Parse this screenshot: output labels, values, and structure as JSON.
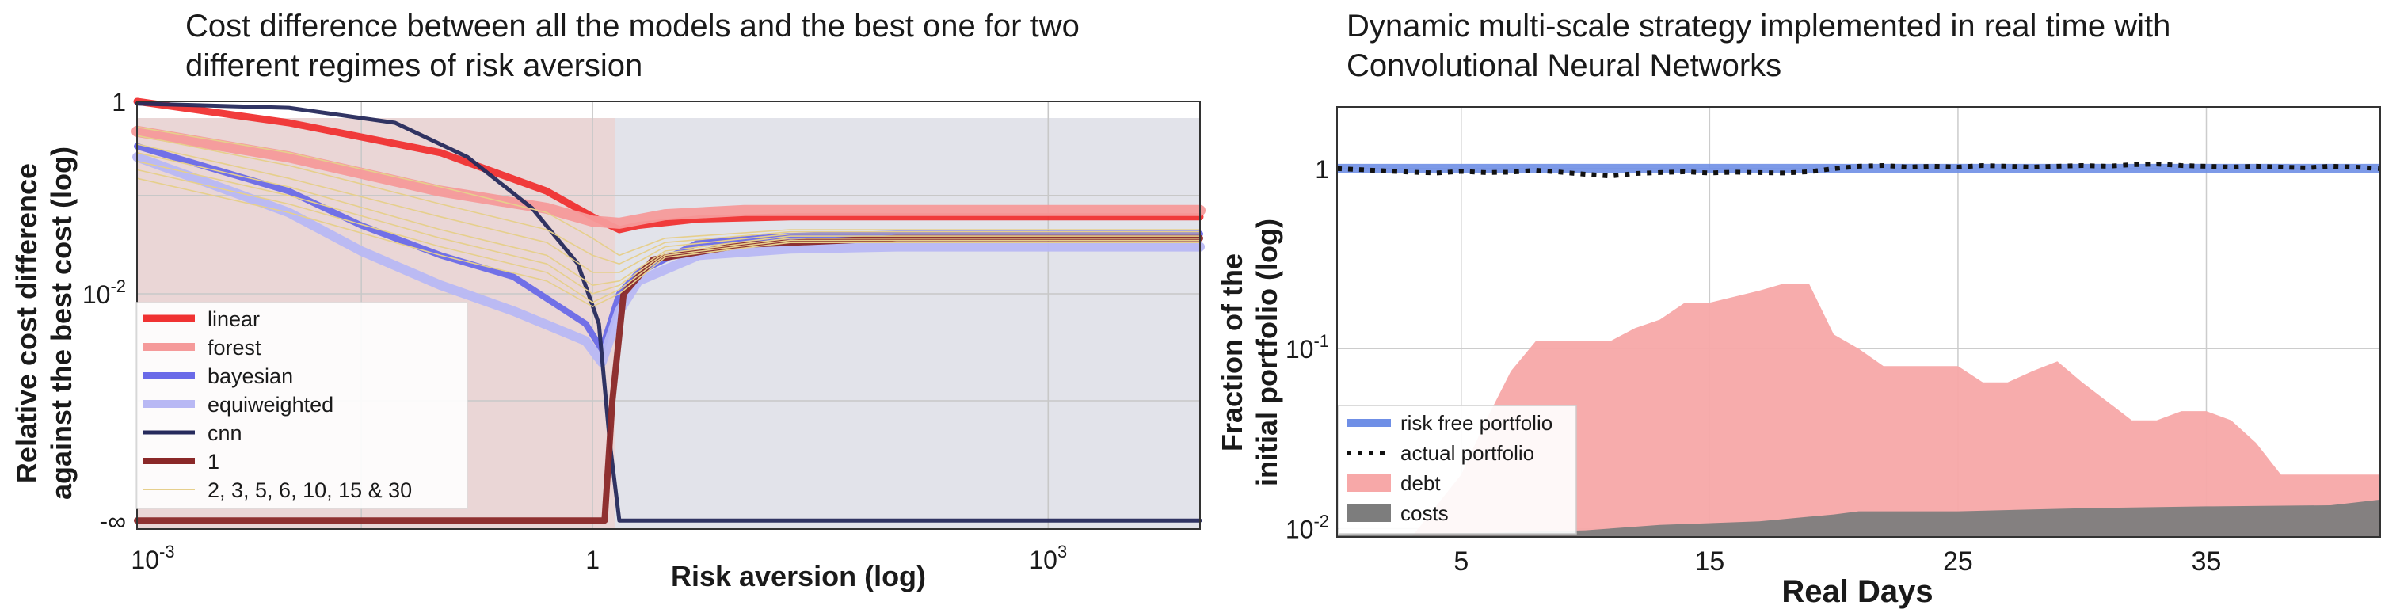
{
  "chart_data": [
    {
      "type": "line",
      "title_lines": [
        "Cost difference between all the models and the best one for two",
        "different regimes of risk aversion"
      ],
      "xlabel": "Risk aversion (log)",
      "ylabel_lines": [
        "Relative cost difference",
        "against the best cost (log)"
      ],
      "xscale": "log",
      "xlim": [
        0.001,
        10000
      ],
      "x_ticks": [
        {
          "value": 0.001,
          "base": "10",
          "exp": "-3"
        },
        {
          "value": 1,
          "base": "1",
          "exp": ""
        },
        {
          "value": 1000,
          "base": "10",
          "exp": "3"
        }
      ],
      "y_ticks": [
        {
          "pos": 1,
          "base": "1",
          "exp": ""
        },
        {
          "pos": 0.55,
          "base": "10",
          "exp": "-2"
        },
        {
          "pos": 0.02,
          "base": "-∞",
          "exp": ""
        }
      ],
      "regimes": [
        {
          "from": 0.001,
          "to": 1.4,
          "color": "#ead6d6"
        },
        {
          "from": 1.4,
          "to": 10000,
          "color": "#e2e3ea"
        }
      ],
      "grid": true,
      "legend_position": "lower-left",
      "series": [
        {
          "name": "linear",
          "color": "#f03232",
          "width": 9,
          "points": [
            [
              0.001,
              1.0
            ],
            [
              0.01,
              0.95
            ],
            [
              0.1,
              0.88
            ],
            [
              0.5,
              0.79
            ],
            [
              1.0,
              0.73
            ],
            [
              1.5,
              0.7
            ],
            [
              2,
              0.71
            ],
            [
              5,
              0.725
            ],
            [
              20,
              0.73
            ],
            [
              100,
              0.73
            ],
            [
              1000,
              0.73
            ],
            [
              10000,
              0.73
            ]
          ]
        },
        {
          "name": "forest",
          "color": "#f59a9a",
          "width": 14,
          "points": [
            [
              0.001,
              0.93
            ],
            [
              0.01,
              0.87
            ],
            [
              0.1,
              0.79
            ],
            [
              0.5,
              0.75
            ],
            [
              1.0,
              0.72
            ],
            [
              1.5,
              0.715
            ],
            [
              3,
              0.735
            ],
            [
              10,
              0.745
            ],
            [
              100,
              0.745
            ],
            [
              1000,
              0.745
            ],
            [
              10000,
              0.745
            ]
          ]
        },
        {
          "name": "bayesian",
          "color": "#6a6ae8",
          "width": 8,
          "points": [
            [
              0.001,
              0.895
            ],
            [
              0.01,
              0.79
            ],
            [
              0.03,
              0.71
            ],
            [
              0.1,
              0.64
            ],
            [
              0.3,
              0.59
            ],
            [
              0.9,
              0.48
            ],
            [
              1.15,
              0.42
            ],
            [
              1.5,
              0.55
            ],
            [
              2,
              0.6
            ],
            [
              5,
              0.67
            ],
            [
              20,
              0.685
            ],
            [
              100,
              0.69
            ],
            [
              10000,
              0.69
            ]
          ]
        },
        {
          "name": "equiweighted",
          "color": "#b8b8f4",
          "width": 12,
          "points": [
            [
              0.001,
              0.87
            ],
            [
              0.01,
              0.74
            ],
            [
              0.03,
              0.65
            ],
            [
              0.1,
              0.57
            ],
            [
              0.3,
              0.51
            ],
            [
              0.9,
              0.44
            ],
            [
              1.15,
              0.39
            ],
            [
              1.5,
              0.51
            ],
            [
              2,
              0.58
            ],
            [
              5,
              0.64
            ],
            [
              20,
              0.655
            ],
            [
              100,
              0.66
            ],
            [
              10000,
              0.66
            ]
          ]
        },
        {
          "name": "cnn",
          "color": "#262a5c",
          "width": 5,
          "points": [
            [
              0.001,
              0.995
            ],
            [
              0.01,
              0.985
            ],
            [
              0.05,
              0.95
            ],
            [
              0.15,
              0.87
            ],
            [
              0.4,
              0.75
            ],
            [
              0.8,
              0.62
            ],
            [
              1.1,
              0.48
            ],
            [
              1.3,
              0.2
            ],
            [
              1.5,
              0.02
            ],
            [
              10000,
              0.02
            ]
          ]
        },
        {
          "name": "1",
          "color": "#8a2828",
          "width": 8,
          "points": [
            [
              0.001,
              0.02
            ],
            [
              1.2,
              0.02
            ],
            [
              1.35,
              0.3
            ],
            [
              1.6,
              0.55
            ],
            [
              2.5,
              0.63
            ],
            [
              10,
              0.665
            ],
            [
              100,
              0.68
            ],
            [
              10000,
              0.68
            ]
          ]
        },
        {
          "name": "2, 3, 5, 6, 10, 15 & 30",
          "color": "#e6cf8c",
          "width": 1.6,
          "group": [
            [
              [
                0.001,
                0.94
              ],
              [
                0.01,
                0.88
              ],
              [
                0.1,
                0.8
              ],
              [
                0.5,
                0.74
              ],
              [
                1.0,
                0.68
              ],
              [
                1.5,
                0.64
              ],
              [
                3,
                0.68
              ],
              [
                20,
                0.7
              ],
              [
                10000,
                0.7
              ]
            ],
            [
              [
                0.001,
                0.92
              ],
              [
                0.01,
                0.85
              ],
              [
                0.1,
                0.76
              ],
              [
                0.5,
                0.7
              ],
              [
                1.0,
                0.64
              ],
              [
                1.5,
                0.62
              ],
              [
                3,
                0.67
              ],
              [
                20,
                0.695
              ],
              [
                10000,
                0.695
              ]
            ],
            [
              [
                0.001,
                0.9
              ],
              [
                0.01,
                0.82
              ],
              [
                0.1,
                0.73
              ],
              [
                0.5,
                0.67
              ],
              [
                1.0,
                0.6
              ],
              [
                1.5,
                0.6
              ],
              [
                3,
                0.66
              ],
              [
                20,
                0.69
              ],
              [
                10000,
                0.69
              ]
            ],
            [
              [
                0.001,
                0.88
              ],
              [
                0.01,
                0.8
              ],
              [
                0.1,
                0.7
              ],
              [
                0.5,
                0.64
              ],
              [
                1.0,
                0.57
              ],
              [
                1.5,
                0.58
              ],
              [
                3,
                0.65
              ],
              [
                20,
                0.685
              ],
              [
                10000,
                0.685
              ]
            ],
            [
              [
                0.001,
                0.86
              ],
              [
                0.01,
                0.78
              ],
              [
                0.1,
                0.68
              ],
              [
                0.5,
                0.62
              ],
              [
                1.0,
                0.55
              ],
              [
                1.5,
                0.57
              ],
              [
                3,
                0.645
              ],
              [
                20,
                0.68
              ],
              [
                10000,
                0.68
              ]
            ],
            [
              [
                0.001,
                0.84
              ],
              [
                0.01,
                0.76
              ],
              [
                0.1,
                0.66
              ],
              [
                0.5,
                0.6
              ],
              [
                1.0,
                0.53
              ],
              [
                1.5,
                0.56
              ],
              [
                3,
                0.64
              ],
              [
                20,
                0.675
              ],
              [
                10000,
                0.675
              ]
            ],
            [
              [
                0.001,
                0.82
              ],
              [
                0.01,
                0.74
              ],
              [
                0.1,
                0.64
              ],
              [
                0.5,
                0.58
              ],
              [
                1.0,
                0.52
              ],
              [
                1.5,
                0.55
              ],
              [
                3,
                0.635
              ],
              [
                20,
                0.67
              ],
              [
                10000,
                0.67
              ]
            ]
          ]
        }
      ]
    },
    {
      "type": "area",
      "title_lines": [
        "Dynamic multi-scale strategy implemented in real time with",
        "Convolutional Neural Networks"
      ],
      "xlabel": "Real Days",
      "ylabel_lines": [
        "Fraction of the",
        "initial portfolio (log)"
      ],
      "xlim": [
        0,
        42
      ],
      "ylim": [
        0.009,
        2.2
      ],
      "yscale": "log",
      "x_ticks": [
        5,
        15,
        25,
        35
      ],
      "y_ticks": [
        {
          "value": 1,
          "base": "1",
          "exp": ""
        },
        {
          "value": 0.1,
          "base": "10",
          "exp": "-1"
        },
        {
          "value": 0.01,
          "base": "10",
          "exp": "-2"
        }
      ],
      "grid": true,
      "legend_position": "lower-left",
      "series": [
        {
          "name": "risk free portfolio",
          "kind": "line",
          "color": "#6f8fe6",
          "width": 12,
          "points": [
            [
              0,
              1.0
            ],
            [
              42,
              1.0
            ]
          ]
        },
        {
          "name": "actual portfolio",
          "kind": "dotted",
          "color": "#111111",
          "width": 6,
          "points": [
            [
              0,
              1.0
            ],
            [
              1,
              0.985
            ],
            [
              2,
              0.97
            ],
            [
              3,
              0.955
            ],
            [
              4,
              0.945
            ],
            [
              5,
              0.965
            ],
            [
              6,
              0.95
            ],
            [
              7,
              0.955
            ],
            [
              8,
              0.98
            ],
            [
              9,
              0.955
            ],
            [
              10,
              0.93
            ],
            [
              11,
              0.91
            ],
            [
              12,
              0.94
            ],
            [
              13,
              0.95
            ],
            [
              14,
              0.96
            ],
            [
              15,
              0.945
            ],
            [
              16,
              0.955
            ],
            [
              17,
              0.95
            ],
            [
              18,
              0.945
            ],
            [
              19,
              0.96
            ],
            [
              20,
              1.0
            ],
            [
              21,
              1.03
            ],
            [
              22,
              1.04
            ],
            [
              23,
              1.02
            ],
            [
              24,
              1.03
            ],
            [
              25,
              1.02
            ],
            [
              26,
              1.04
            ],
            [
              27,
              1.03
            ],
            [
              28,
              1.02
            ],
            [
              29,
              1.03
            ],
            [
              30,
              1.04
            ],
            [
              31,
              1.03
            ],
            [
              32,
              1.05
            ],
            [
              33,
              1.06
            ],
            [
              34,
              1.04
            ],
            [
              35,
              1.03
            ],
            [
              36,
              1.02
            ],
            [
              37,
              1.03
            ],
            [
              38,
              1.02
            ],
            [
              39,
              1.01
            ],
            [
              40,
              1.03
            ],
            [
              41,
              1.02
            ],
            [
              42,
              1.0
            ]
          ]
        },
        {
          "name": "debt",
          "kind": "area",
          "color": "#f7a8a8",
          "points": [
            [
              3,
              0.009
            ],
            [
              5,
              0.02
            ],
            [
              6,
              0.04
            ],
            [
              7,
              0.075
            ],
            [
              8,
              0.11
            ],
            [
              10,
              0.11
            ],
            [
              11,
              0.11
            ],
            [
              12,
              0.13
            ],
            [
              13,
              0.145
            ],
            [
              14,
              0.18
            ],
            [
              15,
              0.18
            ],
            [
              17,
              0.21
            ],
            [
              18,
              0.23
            ],
            [
              19,
              0.23
            ],
            [
              20,
              0.12
            ],
            [
              21,
              0.1
            ],
            [
              22,
              0.08
            ],
            [
              25,
              0.08
            ],
            [
              26,
              0.065
            ],
            [
              27,
              0.065
            ],
            [
              28,
              0.075
            ],
            [
              29,
              0.085
            ],
            [
              30,
              0.065
            ],
            [
              32,
              0.04
            ],
            [
              33,
              0.04
            ],
            [
              34,
              0.045
            ],
            [
              35,
              0.045
            ],
            [
              36,
              0.04
            ],
            [
              37,
              0.03
            ],
            [
              38,
              0.02
            ],
            [
              40,
              0.02
            ],
            [
              41,
              0.02
            ],
            [
              42,
              0.02
            ]
          ]
        },
        {
          "name": "costs",
          "kind": "area",
          "color": "#7d7d7d",
          "points": [
            [
              0,
              0.0093
            ],
            [
              6,
              0.0095
            ],
            [
              10,
              0.0098
            ],
            [
              13,
              0.0105
            ],
            [
              17,
              0.011
            ],
            [
              20,
              0.012
            ],
            [
              21,
              0.0125
            ],
            [
              25,
              0.0125
            ],
            [
              30,
              0.013
            ],
            [
              35,
              0.0133
            ],
            [
              40,
              0.0135
            ],
            [
              42,
              0.0145
            ]
          ]
        }
      ]
    }
  ]
}
